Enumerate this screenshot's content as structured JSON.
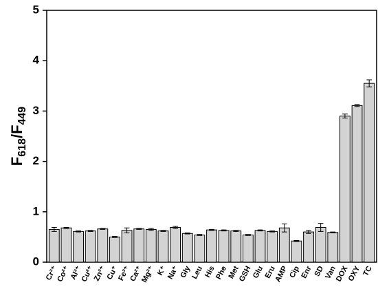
{
  "chart_data": {
    "type": "bar",
    "y_label": [
      "F",
      "618",
      "/F",
      "449"
    ],
    "categories": [
      "Cr³⁺",
      "Co²⁺",
      "Al³⁺",
      "Cu²⁺",
      "Zn²⁺",
      "Cu⁺",
      "Fe³⁺",
      "Ca²⁺",
      "Mg²⁺",
      "K⁺",
      "Na⁺",
      "Gly",
      "Leu",
      "His",
      "Phe",
      "Met",
      "GSH",
      "Glu",
      "Eru",
      "AMP",
      "Cip",
      "Enr",
      "SD",
      "Van",
      "DOX",
      "OXY",
      "TC"
    ],
    "values": [
      0.65,
      0.68,
      0.61,
      0.62,
      0.66,
      0.5,
      0.63,
      0.66,
      0.65,
      0.62,
      0.69,
      0.57,
      0.54,
      0.64,
      0.63,
      0.62,
      0.54,
      0.63,
      0.61,
      0.68,
      0.42,
      0.6,
      0.69,
      0.59,
      2.9,
      3.11,
      3.55
    ],
    "errors": [
      0.04,
      0.01,
      0.01,
      0.01,
      0.01,
      0.01,
      0.05,
      0.01,
      0.02,
      0.01,
      0.02,
      0.01,
      0.01,
      0.01,
      0.01,
      0.01,
      0.01,
      0.01,
      0.01,
      0.08,
      0.01,
      0.03,
      0.08,
      0.01,
      0.04,
      0.02,
      0.07
    ],
    "color": "#d3d3d3",
    "ylim": [
      0,
      5
    ],
    "yticks": [
      0,
      1,
      2,
      3,
      4,
      5
    ]
  }
}
